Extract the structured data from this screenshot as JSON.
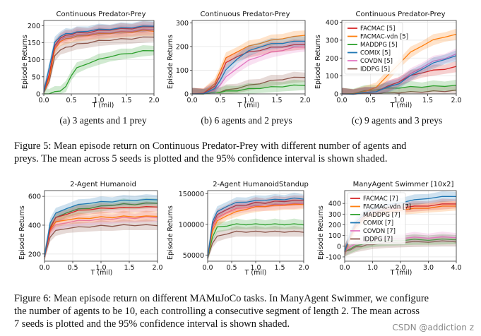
{
  "figure5": {
    "caption": "Figure 5: Mean episode return on Continuous Predator-Prey with different number of agents and preys. The mean across 5 seeds is plotted and the 95% confidence interval is shown shaded.",
    "caption_lines": [
      "Figure 5: Mean episode return on Continuous Predator-Prey with different number of agents and",
      "preys. The mean across 5 seeds is plotted and the 95% confidence interval is shown shaded."
    ],
    "subcaptions": [
      "(a) 3 agents and 1 prey",
      "(b) 6 agents and 2 preys",
      "(c) 9 agents and 3 preys"
    ]
  },
  "figure6": {
    "caption_lines": [
      "Figure 6: Mean episode return on different MAMuJoCo tasks. In ManyAgent Swimmer, we configure",
      "the number of agents to be 10, each controlling a consecutive segment of length 2. The mean across",
      "7 seeds is plotted and the 95% confidence interval is shown shaded."
    ]
  },
  "colors": {
    "FACMAC": "#d62728",
    "FACMAC-vdn": "#ff7f0e",
    "MADDPG": "#2ca02c",
    "COMIX": "#1f77b4",
    "COVDN": "#e377c2",
    "IDDPG": "#8c564b"
  },
  "watermark": "CSDN @addiction z",
  "chart_data": [
    {
      "type": "line",
      "title": "Continuous Predator-Prey",
      "xlabel": "T (mil)",
      "ylabel": "Episode Returns",
      "xlim": [
        0,
        2.0
      ],
      "ylim": [
        0,
        215
      ],
      "xticks": [
        "0.0",
        "0.5",
        "1.0",
        "1.5",
        "2.0"
      ],
      "yticks": [
        "0",
        "50",
        "100",
        "150",
        "200"
      ],
      "x": [
        0,
        0.1,
        0.2,
        0.3,
        0.4,
        0.5,
        0.6,
        0.8,
        1.0,
        1.2,
        1.4,
        1.6,
        1.8,
        2.0
      ],
      "series": [
        {
          "name": "FACMAC",
          "values": [
            5,
            60,
            140,
            165,
            170,
            175,
            178,
            180,
            185,
            188,
            190,
            192,
            195,
            198
          ]
        },
        {
          "name": "FACMAC-vdn",
          "values": [
            5,
            50,
            130,
            155,
            160,
            165,
            168,
            172,
            175,
            178,
            180,
            182,
            185,
            185
          ]
        },
        {
          "name": "MADDPG",
          "values": [
            0,
            2,
            5,
            10,
            20,
            55,
            75,
            90,
            100,
            110,
            115,
            120,
            125,
            128
          ]
        },
        {
          "name": "COMIX",
          "values": [
            5,
            80,
            150,
            170,
            175,
            178,
            180,
            185,
            188,
            190,
            192,
            195,
            197,
            200
          ]
        },
        {
          "name": "COVDN",
          "values": [
            5,
            55,
            135,
            160,
            165,
            170,
            172,
            175,
            178,
            180,
            182,
            185,
            188,
            190
          ]
        },
        {
          "name": "IDDPG",
          "values": [
            3,
            40,
            110,
            130,
            135,
            140,
            145,
            150,
            155,
            158,
            160,
            162,
            165,
            168
          ]
        }
      ]
    },
    {
      "type": "line",
      "title": "Continuous Predator-Prey",
      "xlabel": "T (mil)",
      "ylabel": "Episode Returns",
      "xlim": [
        0,
        2.0
      ],
      "ylim": [
        0,
        310
      ],
      "xticks": [
        "0.0",
        "0.5",
        "1.0",
        "1.5",
        "2.0"
      ],
      "yticks": [
        "0",
        "100",
        "200",
        "300"
      ],
      "x": [
        0,
        0.2,
        0.4,
        0.5,
        0.6,
        0.8,
        1.0,
        1.2,
        1.4,
        1.6,
        1.8,
        2.0
      ],
      "series": [
        {
          "name": "FACMAC",
          "values": [
            0,
            5,
            30,
            80,
            130,
            160,
            175,
            185,
            195,
            200,
            205,
            210
          ]
        },
        {
          "name": "FACMAC-vdn",
          "values": [
            0,
            5,
            40,
            100,
            150,
            180,
            200,
            215,
            225,
            235,
            240,
            250
          ]
        },
        {
          "name": "MADDPG",
          "values": [
            0,
            2,
            5,
            8,
            10,
            15,
            20,
            25,
            28,
            32,
            35,
            38
          ]
        },
        {
          "name": "COMIX",
          "values": [
            0,
            3,
            20,
            60,
            100,
            150,
            180,
            200,
            210,
            215,
            220,
            225
          ]
        },
        {
          "name": "COVDN",
          "values": [
            0,
            3,
            15,
            40,
            70,
            110,
            140,
            160,
            175,
            185,
            195,
            200
          ]
        },
        {
          "name": "IDDPG",
          "values": [
            0,
            2,
            5,
            10,
            15,
            25,
            35,
            45,
            55,
            62,
            68,
            72
          ]
        }
      ]
    },
    {
      "type": "line",
      "title": "Continuous Predator-Prey",
      "xlabel": "T (mil)",
      "ylabel": "Episode Returns",
      "xlim": [
        0,
        2.0
      ],
      "ylim": [
        0,
        410
      ],
      "xticks": [
        "0.0",
        "0.5",
        "1.0",
        "1.5",
        "2.0"
      ],
      "yticks": [
        "0",
        "100",
        "200",
        "300",
        "400"
      ],
      "legend": [
        "FACMAC [5]",
        "FACMAC-vdn [5]",
        "MADDPG [5]",
        "COMIX [5]",
        "COVDN [5]",
        "IDDPG [5]"
      ],
      "legend_position": "top-left",
      "x": [
        0,
        0.2,
        0.4,
        0.6,
        0.8,
        1.0,
        1.2,
        1.4,
        1.6,
        1.8,
        2.0
      ],
      "series": [
        {
          "name": "FACMAC",
          "values": [
            0,
            2,
            5,
            15,
            40,
            70,
            100,
            120,
            130,
            140,
            150
          ]
        },
        {
          "name": "FACMAC-vdn",
          "values": [
            0,
            3,
            10,
            40,
            100,
            170,
            230,
            270,
            300,
            320,
            330
          ]
        },
        {
          "name": "MADDPG",
          "values": [
            0,
            5,
            15,
            25,
            30,
            35,
            38,
            40,
            42,
            45,
            45
          ]
        },
        {
          "name": "COMIX",
          "values": [
            0,
            2,
            5,
            15,
            35,
            60,
            100,
            140,
            170,
            195,
            210
          ]
        },
        {
          "name": "COVDN",
          "values": [
            0,
            2,
            5,
            15,
            40,
            70,
            110,
            150,
            180,
            200,
            220
          ]
        },
        {
          "name": "IDDPG",
          "values": [
            0,
            1,
            2,
            4,
            6,
            8,
            10,
            12,
            14,
            16,
            18
          ]
        }
      ]
    },
    {
      "type": "line",
      "title": "2-Agent Humanoid",
      "xlabel": "T (mil)",
      "ylabel": "Episode Returns",
      "xlim": [
        0,
        2.0
      ],
      "ylim": [
        150,
        640
      ],
      "xticks": [
        "0.0",
        "0.5",
        "1.0",
        "1.5",
        "2.0"
      ],
      "yticks": [
        "200",
        "400",
        "600"
      ],
      "x": [
        0,
        0.1,
        0.2,
        0.4,
        0.6,
        0.8,
        1.0,
        1.2,
        1.4,
        1.6,
        1.8,
        2.0
      ],
      "series": [
        {
          "name": "FACMAC",
          "values": [
            180,
            380,
            450,
            480,
            500,
            510,
            515,
            520,
            520,
            525,
            525,
            530
          ]
        },
        {
          "name": "FACMAC-vdn",
          "values": [
            180,
            370,
            420,
            440,
            445,
            450,
            455,
            455,
            460,
            460,
            460,
            465
          ]
        },
        {
          "name": "MADDPG",
          "values": [
            180,
            390,
            450,
            490,
            510,
            520,
            530,
            540,
            545,
            545,
            550,
            555
          ]
        },
        {
          "name": "COMIX",
          "values": [
            180,
            420,
            480,
            520,
            540,
            555,
            560,
            565,
            570,
            575,
            575,
            580
          ]
        },
        {
          "name": "COVDN",
          "values": [
            180,
            360,
            400,
            420,
            430,
            435,
            440,
            445,
            450,
            450,
            455,
            455
          ]
        },
        {
          "name": "IDDPG",
          "values": [
            180,
            320,
            360,
            380,
            385,
            390,
            395,
            395,
            400,
            400,
            400,
            400
          ]
        }
      ]
    },
    {
      "type": "line",
      "title": "2-Agent HumanoidStandup",
      "xlabel": "T (mil)",
      "ylabel": "Episode Returns",
      "xlim": [
        0,
        2.0
      ],
      "ylim": [
        40000,
        155000
      ],
      "xticks": [
        "0.0",
        "0.5",
        "1.0",
        "1.5",
        "2.0"
      ],
      "yticks": [
        "50000",
        "100000",
        "150000"
      ],
      "x": [
        0,
        0.1,
        0.2,
        0.4,
        0.6,
        0.8,
        1.0,
        1.2,
        1.4,
        1.6,
        1.8,
        2.0
      ],
      "series": [
        {
          "name": "FACMAC",
          "values": [
            45000,
            100000,
            115000,
            125000,
            130000,
            132000,
            135000,
            135000,
            137000,
            138000,
            138000,
            140000
          ]
        },
        {
          "name": "FACMAC-vdn",
          "values": [
            45000,
            90000,
            105000,
            115000,
            120000,
            125000,
            128000,
            130000,
            130000,
            132000,
            132000,
            133000
          ]
        },
        {
          "name": "MADDPG",
          "values": [
            45000,
            80000,
            95000,
            98000,
            100000,
            100000,
            100000,
            100000,
            100000,
            100000,
            100000,
            100000
          ]
        },
        {
          "name": "COMIX",
          "values": [
            45000,
            105000,
            120000,
            130000,
            135000,
            137000,
            138000,
            140000,
            140000,
            141000,
            142000,
            142000
          ]
        },
        {
          "name": "COVDN",
          "values": [
            45000,
            95000,
            110000,
            120000,
            125000,
            128000,
            130000,
            130000,
            132000,
            133000,
            133000,
            135000
          ]
        },
        {
          "name": "IDDPG",
          "values": [
            45000,
            70000,
            80000,
            85000,
            88000,
            88000,
            88000,
            88000,
            88000,
            88000,
            88000,
            88000
          ]
        }
      ]
    },
    {
      "type": "line",
      "title": "ManyAgent Swimmer [10x2]",
      "xlabel": "T (mil)",
      "ylabel": "Episode Returns",
      "xlim": [
        0,
        4.0
      ],
      "ylim": [
        -140,
        520
      ],
      "xticks": [
        "0.0",
        "1.0",
        "2.0",
        "3.0",
        "4.0"
      ],
      "yticks": [
        "-100",
        "0",
        "100",
        "200",
        "300",
        "400"
      ],
      "legend": [
        "FACMAC [7]",
        "FACMAC-vdn [7]",
        "MADDPG [7]",
        "COMIX [7]",
        "COVDN [7]",
        "IDDPG [7]"
      ],
      "legend_position": "top-left",
      "x": [
        0,
        0.2,
        0.4,
        0.6,
        0.8,
        1.0,
        1.5,
        2.0,
        2.5,
        3.0,
        3.5,
        4.0
      ],
      "series": [
        {
          "name": "FACMAC",
          "values": [
            -50,
            100,
            200,
            260,
            300,
            320,
            340,
            360,
            370,
            380,
            390,
            400
          ]
        },
        {
          "name": "FACMAC-vdn",
          "values": [
            -50,
            80,
            180,
            240,
            280,
            300,
            320,
            340,
            350,
            360,
            370,
            380
          ]
        },
        {
          "name": "MADDPG",
          "values": [
            -50,
            -20,
            0,
            20,
            30,
            40,
            50,
            55,
            60,
            60,
            62,
            65
          ]
        },
        {
          "name": "COMIX",
          "values": [
            -50,
            120,
            220,
            280,
            320,
            350,
            380,
            410,
            430,
            450,
            460,
            470
          ]
        },
        {
          "name": "COVDN",
          "values": [
            -50,
            0,
            20,
            40,
            50,
            60,
            70,
            75,
            80,
            80,
            82,
            85
          ]
        },
        {
          "name": "IDDPG",
          "values": [
            -50,
            -30,
            -10,
            0,
            10,
            20,
            30,
            35,
            40,
            42,
            45,
            45
          ]
        }
      ]
    }
  ]
}
